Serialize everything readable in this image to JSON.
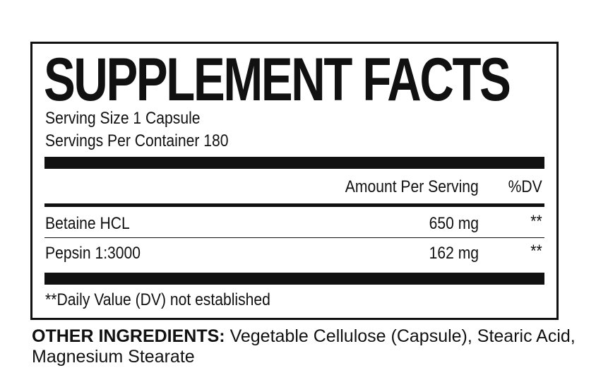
{
  "title": "SUPPLEMENT FACTS",
  "serving_size": "Serving Size 1 Capsule",
  "servings_per_container": "Servings Per Container 180",
  "header": {
    "amount": "Amount Per Serving",
    "dv": "%DV"
  },
  "rows": [
    {
      "name": "Betaine HCL",
      "amount": "650 mg",
      "dv": "**"
    },
    {
      "name": "Pepsin 1:3000",
      "amount": "162 mg",
      "dv": "**"
    }
  ],
  "footnote": "**Daily Value (DV) not established",
  "other_label": "OTHER INGREDIENTS:",
  "other_text": " Vegetable Cellulose (Capsule), Stearic Acid, Magnesium Stearate"
}
